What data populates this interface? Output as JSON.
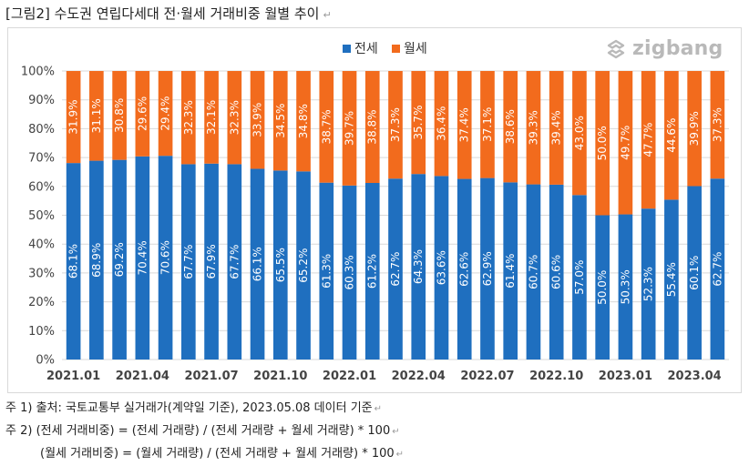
{
  "figure_title": "[그림2] 수도권 연립다세대 전·월세 거래비중 월별 추이",
  "logo_text": "zigbang",
  "colors": {
    "jeonse": "#1f6fbf",
    "wolse": "#f26b1d",
    "grid": "#d9d9d9"
  },
  "notes": [
    "주 1) 출처: 국토교통부 실거래가(계약일 기준), 2023.05.08  데이터 기준",
    "주 2) (전세 거래비중) = (전세 거래량) / (전세 거래량  +  월세 거래량) * 100",
    "(월세 거래비중) = (월세 거래량) / (전세 거래량  +  월세 거래량) * 100"
  ],
  "chart_data": {
    "type": "bar",
    "stacked": true,
    "title": "",
    "xlabel": "",
    "ylabel": "",
    "ylim": [
      0,
      100
    ],
    "y_ticks": [
      "0%",
      "10%",
      "20%",
      "30%",
      "40%",
      "50%",
      "60%",
      "70%",
      "80%",
      "90%",
      "100%"
    ],
    "legend_position": "top-center",
    "grid": true,
    "categories": [
      "2021.01",
      "2021.02",
      "2021.03",
      "2021.04",
      "2021.05",
      "2021.06",
      "2021.07",
      "2021.08",
      "2021.09",
      "2021.10",
      "2021.11",
      "2021.12",
      "2022.01",
      "2022.02",
      "2022.03",
      "2022.04",
      "2022.05",
      "2022.06",
      "2022.07",
      "2022.08",
      "2022.09",
      "2022.10",
      "2022.11",
      "2022.12",
      "2023.01",
      "2023.02",
      "2023.03",
      "2023.04",
      "2023.05"
    ],
    "x_tick_labels": [
      "2021.01",
      "2021.04",
      "2021.07",
      "2021.10",
      "2022.01",
      "2022.04",
      "2022.07",
      "2022.10",
      "2023.01",
      "2023.04"
    ],
    "series": [
      {
        "name": "전세",
        "color": "#1f6fbf",
        "values": [
          68.1,
          68.9,
          69.2,
          70.4,
          70.6,
          67.7,
          67.9,
          67.7,
          66.1,
          65.5,
          65.2,
          61.3,
          60.3,
          61.2,
          62.7,
          64.3,
          63.6,
          62.6,
          62.9,
          61.4,
          60.7,
          60.6,
          57.0,
          50.0,
          50.3,
          52.3,
          55.4,
          60.1,
          62.7
        ],
        "labels": [
          "68.1%",
          "68.9%",
          "69.2%",
          "70.4%",
          "70.6%",
          "67.7%",
          "67.9%",
          "67.7%",
          "66.1%",
          "65.5%",
          "65.2%",
          "61.3%",
          "60.3%",
          "61.2%",
          "62.7%",
          "64.3%",
          "63.6%",
          "62.6%",
          "62.9%",
          "61.4%",
          "60.7%",
          "60.6%",
          "57.0%",
          "50.0%",
          "50.3%",
          "52.3%",
          "55.4%",
          "60.1%",
          "62.7%"
        ]
      },
      {
        "name": "월세",
        "color": "#f26b1d",
        "values": [
          31.9,
          31.1,
          30.8,
          29.6,
          29.4,
          32.3,
          32.1,
          32.3,
          33.9,
          34.5,
          34.8,
          38.7,
          39.7,
          38.8,
          37.3,
          35.7,
          36.4,
          37.4,
          37.1,
          38.6,
          39.3,
          39.4,
          43.0,
          50.0,
          49.7,
          47.7,
          44.6,
          39.9,
          37.3
        ],
        "labels": [
          "31.9%",
          "31.1%",
          "30.8%",
          "29.6%",
          "29.4%",
          "32.3%",
          "32.1%",
          "32.3%",
          "33.9%",
          "34.5%",
          "34.8%",
          "38.7%",
          "39.7%",
          "38.8%",
          "37.3%",
          "35.7%",
          "36.4%",
          "37.4%",
          "37.1%",
          "38.6%",
          "39.3%",
          "39.4%",
          "43.0%",
          "50.0%",
          "49.7%",
          "47.7%",
          "44.6%",
          "39.9%",
          "37.3%"
        ]
      }
    ]
  }
}
